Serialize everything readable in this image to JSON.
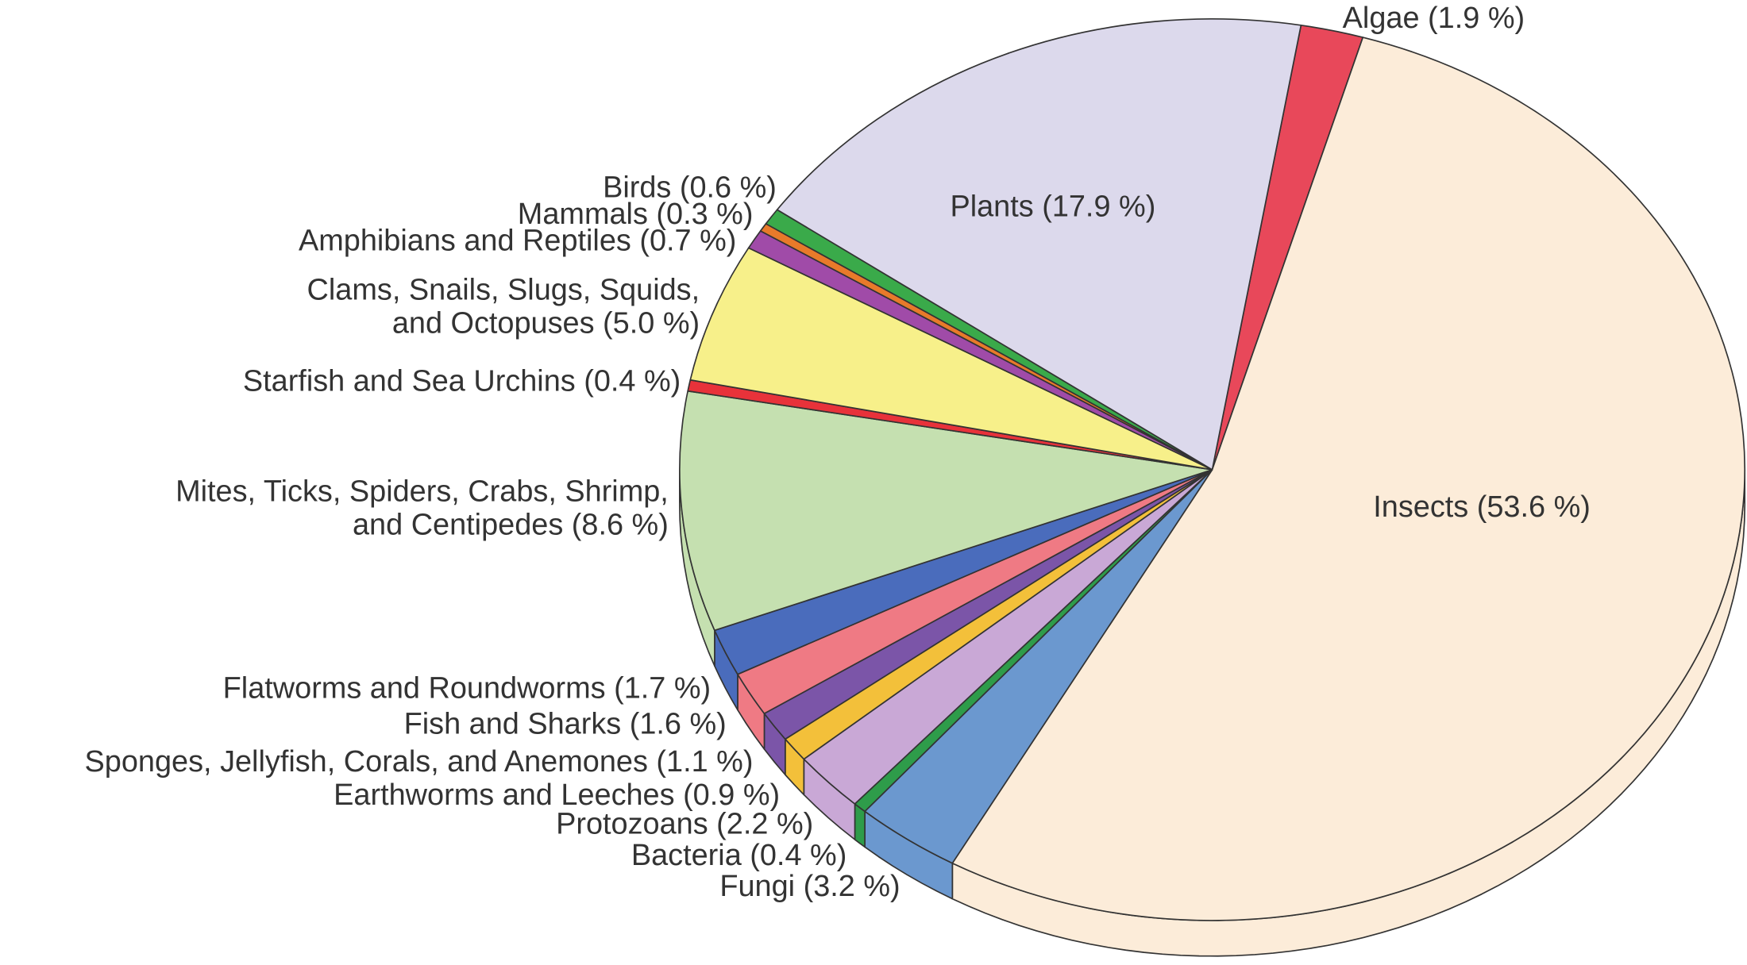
{
  "chart_data": {
    "type": "pie",
    "labels": [
      "Algae (1.9 %)",
      "Insects (53.6 %)",
      "Fungi (3.2 %)",
      "Bacteria (0.4 %)",
      "Protozoans (2.2 %)",
      "Earthworms and Leeches (0.9 %)",
      "Sponges, Jellyfish, Corals, and Anemones (1.1 %)",
      "Fish and Sharks (1.6 %)",
      "Flatworms and Roundworms (1.7 %)",
      "Mites, Ticks, Spiders, Crabs, Shrimp,\nand Centipedes (8.6 %)",
      "Starfish and Sea Urchins (0.4 %)",
      "Clams, Snails, Slugs, Squids,\nand Octopuses (5.0 %)",
      "Amphibians and Reptiles (0.7 %)",
      "Mammals (0.3 %)",
      "Birds (0.6 %)",
      "Plants (17.9 %)"
    ],
    "values": [
      1.9,
      53.6,
      3.2,
      0.4,
      2.2,
      0.9,
      1.1,
      1.6,
      1.7,
      8.6,
      0.4,
      5.0,
      0.7,
      0.3,
      0.6,
      17.9
    ],
    "colors": [
      "#e8485a",
      "#fcecd9",
      "#6b98cf",
      "#2e9c4a",
      "#c9a8d6",
      "#f3c03a",
      "#7b55a8",
      "#ef7a84",
      "#4a6cbc",
      "#c5e0b0",
      "#e8323a",
      "#f7f08a",
      "#a04ba8",
      "#e87a2a",
      "#3aaa4a",
      "#dcd9ec"
    ]
  }
}
